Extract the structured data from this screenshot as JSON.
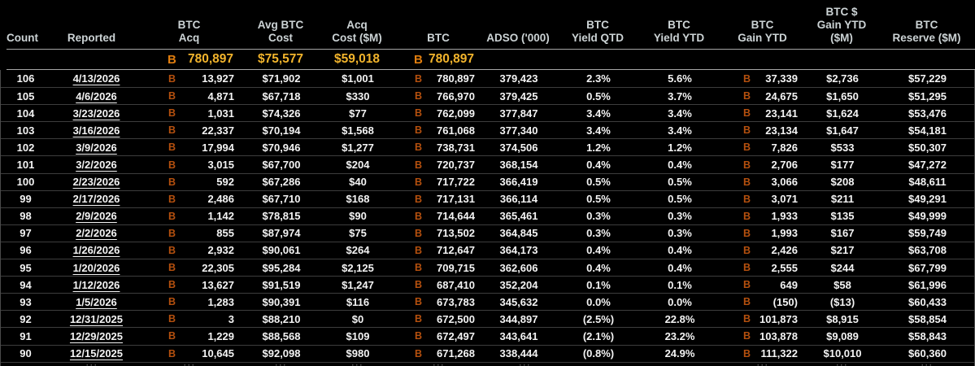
{
  "icons": {
    "btc_symbol": "B"
  },
  "colors": {
    "background": "#000000",
    "header_text": "#ccd3d5",
    "data_text": "#f4f4f4",
    "btc_icon_row": "#b5500e",
    "btc_icon_summary": "#e07d0e",
    "summary_value": "#f2b42c",
    "row_divider": "#3d3d3d",
    "strong_divider": "#a5a5a5"
  },
  "table": {
    "partial_row_hint": "···",
    "columns": [
      {
        "id": "count",
        "lines": [
          "Count"
        ]
      },
      {
        "id": "reported",
        "lines": [
          "Reported"
        ]
      },
      {
        "id": "btc_acq",
        "lines": [
          "BTC",
          "Acq"
        ]
      },
      {
        "id": "avg_cost",
        "lines": [
          "Avg BTC",
          "Cost"
        ]
      },
      {
        "id": "acq_cost",
        "lines": [
          "Acq",
          "Cost ($M)"
        ]
      },
      {
        "id": "btc",
        "lines": [
          "BTC"
        ]
      },
      {
        "id": "adso",
        "lines": [
          "ADSO ('000)"
        ]
      },
      {
        "id": "yield_qtd",
        "lines": [
          "BTC",
          "Yield QTD"
        ]
      },
      {
        "id": "yield_ytd",
        "lines": [
          "BTC",
          "Yield YTD"
        ]
      },
      {
        "id": "gain_ytd",
        "lines": [
          "BTC",
          "Gain YTD"
        ]
      },
      {
        "id": "gain_usd",
        "lines": [
          "BTC $",
          "Gain YTD",
          "($M)"
        ]
      },
      {
        "id": "reserve",
        "lines": [
          "BTC",
          "Reserve ($M)"
        ]
      }
    ],
    "summary": {
      "btc_acq": "780,897",
      "avg_cost": "$75,577",
      "acq_cost": "$59,018",
      "btc": "780,897"
    },
    "rows": [
      {
        "count": "106",
        "reported": "4/13/2026",
        "btc_acq": "13,927",
        "avg_cost": "$71,902",
        "acq_cost": "$1,001",
        "btc": "780,897",
        "adso": "379,423",
        "yield_qtd": "2.3%",
        "yield_ytd": "5.6%",
        "gain_ytd": "37,339",
        "gain_usd": "$2,736",
        "reserve": "$57,229"
      },
      {
        "count": "105",
        "reported": "4/6/2026",
        "btc_acq": "4,871",
        "avg_cost": "$67,718",
        "acq_cost": "$330",
        "btc": "766,970",
        "adso": "379,425",
        "yield_qtd": "0.5%",
        "yield_ytd": "3.7%",
        "gain_ytd": "24,675",
        "gain_usd": "$1,650",
        "reserve": "$51,295"
      },
      {
        "count": "104",
        "reported": "3/23/2026",
        "btc_acq": "1,031",
        "avg_cost": "$74,326",
        "acq_cost": "$77",
        "btc": "762,099",
        "adso": "377,847",
        "yield_qtd": "3.4%",
        "yield_ytd": "3.4%",
        "gain_ytd": "23,141",
        "gain_usd": "$1,624",
        "reserve": "$53,476"
      },
      {
        "count": "103",
        "reported": "3/16/2026",
        "btc_acq": "22,337",
        "avg_cost": "$70,194",
        "acq_cost": "$1,568",
        "btc": "761,068",
        "adso": "377,340",
        "yield_qtd": "3.4%",
        "yield_ytd": "3.4%",
        "gain_ytd": "23,134",
        "gain_usd": "$1,647",
        "reserve": "$54,181"
      },
      {
        "count": "102",
        "reported": "3/9/2026",
        "btc_acq": "17,994",
        "avg_cost": "$70,946",
        "acq_cost": "$1,277",
        "btc": "738,731",
        "adso": "374,506",
        "yield_qtd": "1.2%",
        "yield_ytd": "1.2%",
        "gain_ytd": "7,826",
        "gain_usd": "$533",
        "reserve": "$50,307"
      },
      {
        "count": "101",
        "reported": "3/2/2026",
        "btc_acq": "3,015",
        "avg_cost": "$67,700",
        "acq_cost": "$204",
        "btc": "720,737",
        "adso": "368,154",
        "yield_qtd": "0.4%",
        "yield_ytd": "0.4%",
        "gain_ytd": "2,706",
        "gain_usd": "$177",
        "reserve": "$47,272"
      },
      {
        "count": "100",
        "reported": "2/23/2026",
        "btc_acq": "592",
        "avg_cost": "$67,286",
        "acq_cost": "$40",
        "btc": "717,722",
        "adso": "366,419",
        "yield_qtd": "0.5%",
        "yield_ytd": "0.5%",
        "gain_ytd": "3,066",
        "gain_usd": "$208",
        "reserve": "$48,611"
      },
      {
        "count": "99",
        "reported": "2/17/2026",
        "btc_acq": "2,486",
        "avg_cost": "$67,710",
        "acq_cost": "$168",
        "btc": "717,131",
        "adso": "366,114",
        "yield_qtd": "0.5%",
        "yield_ytd": "0.5%",
        "gain_ytd": "3,071",
        "gain_usd": "$211",
        "reserve": "$49,291"
      },
      {
        "count": "98",
        "reported": "2/9/2026",
        "btc_acq": "1,142",
        "avg_cost": "$78,815",
        "acq_cost": "$90",
        "btc": "714,644",
        "adso": "365,461",
        "yield_qtd": "0.3%",
        "yield_ytd": "0.3%",
        "gain_ytd": "1,933",
        "gain_usd": "$135",
        "reserve": "$49,999"
      },
      {
        "count": "97",
        "reported": "2/2/2026",
        "btc_acq": "855",
        "avg_cost": "$87,974",
        "acq_cost": "$75",
        "btc": "713,502",
        "adso": "364,845",
        "yield_qtd": "0.3%",
        "yield_ytd": "0.3%",
        "gain_ytd": "1,993",
        "gain_usd": "$167",
        "reserve": "$59,749"
      },
      {
        "count": "96",
        "reported": "1/26/2026",
        "btc_acq": "2,932",
        "avg_cost": "$90,061",
        "acq_cost": "$264",
        "btc": "712,647",
        "adso": "364,173",
        "yield_qtd": "0.4%",
        "yield_ytd": "0.4%",
        "gain_ytd": "2,426",
        "gain_usd": "$217",
        "reserve": "$63,708"
      },
      {
        "count": "95",
        "reported": "1/20/2026",
        "btc_acq": "22,305",
        "avg_cost": "$95,284",
        "acq_cost": "$2,125",
        "btc": "709,715",
        "adso": "362,606",
        "yield_qtd": "0.4%",
        "yield_ytd": "0.4%",
        "gain_ytd": "2,555",
        "gain_usd": "$244",
        "reserve": "$67,799"
      },
      {
        "count": "94",
        "reported": "1/12/2026",
        "btc_acq": "13,627",
        "avg_cost": "$91,519",
        "acq_cost": "$1,247",
        "btc": "687,410",
        "adso": "352,204",
        "yield_qtd": "0.1%",
        "yield_ytd": "0.1%",
        "gain_ytd": "649",
        "gain_usd": "$58",
        "reserve": "$61,996"
      },
      {
        "count": "93",
        "reported": "1/5/2026",
        "btc_acq": "1,283",
        "avg_cost": "$90,391",
        "acq_cost": "$116",
        "btc": "673,783",
        "adso": "345,632",
        "yield_qtd": "0.0%",
        "yield_ytd": "0.0%",
        "gain_ytd": "(150)",
        "gain_usd": "($13)",
        "reserve": "$60,433"
      },
      {
        "count": "92",
        "reported": "12/31/2025",
        "btc_acq": "3",
        "avg_cost": "$88,210",
        "acq_cost": "$0",
        "btc": "672,500",
        "adso": "344,897",
        "yield_qtd": "(2.5%)",
        "yield_ytd": "22.8%",
        "gain_ytd": "101,873",
        "gain_usd": "$8,915",
        "reserve": "$58,854"
      },
      {
        "count": "91",
        "reported": "12/29/2025",
        "btc_acq": "1,229",
        "avg_cost": "$88,568",
        "acq_cost": "$109",
        "btc": "672,497",
        "adso": "343,641",
        "yield_qtd": "(2.1%)",
        "yield_ytd": "23.2%",
        "gain_ytd": "103,878",
        "gain_usd": "$9,089",
        "reserve": "$58,843"
      },
      {
        "count": "90",
        "reported": "12/15/2025",
        "btc_acq": "10,645",
        "avg_cost": "$92,098",
        "acq_cost": "$980",
        "btc": "671,268",
        "adso": "338,444",
        "yield_qtd": "(0.8%)",
        "yield_ytd": "24.9%",
        "gain_ytd": "111,322",
        "gain_usd": "$10,010",
        "reserve": "$60,360"
      }
    ]
  }
}
